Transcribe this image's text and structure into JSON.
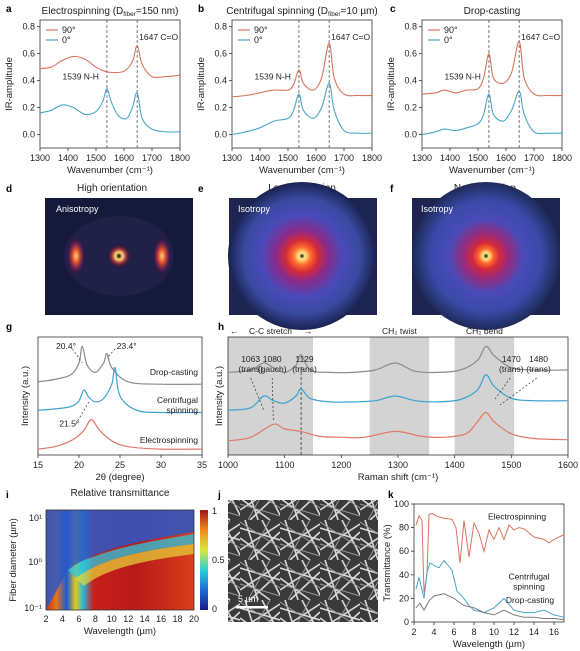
{
  "chart_data": [
    {
      "panel": "a",
      "type": "line",
      "title": "Electrospinning (D_fiber=150 nm)",
      "title_main": "Electrospinning (D",
      "title_sub": "fiber",
      "title_end": "=150 nm)",
      "xlabel": "Wavenumber (cm⁻¹)",
      "ylabel": "IR-amplitude",
      "xlim": [
        1300,
        1800
      ],
      "ylim": [
        -0.1,
        0.85
      ],
      "xticks": [
        "1300",
        "1400",
        "1500",
        "1600",
        "1700",
        "1800"
      ],
      "yticks": [
        "0.0",
        "0.2",
        "0.4",
        "0.6",
        "0.8"
      ],
      "legend": [
        "90°",
        "0°"
      ],
      "annotations": [
        "1539 N-H",
        "1647 C=O"
      ],
      "series": [
        {
          "name": "90°",
          "color": "#d9735f",
          "x": [
            1300,
            1340,
            1380,
            1420,
            1460,
            1500,
            1530,
            1560,
            1600,
            1630,
            1647,
            1665,
            1700,
            1750,
            1800
          ],
          "y": [
            0.49,
            0.5,
            0.55,
            0.58,
            0.56,
            0.5,
            0.47,
            0.46,
            0.47,
            0.54,
            0.66,
            0.52,
            0.43,
            0.43,
            0.44
          ]
        },
        {
          "name": "0°",
          "color": "#4aa6c8",
          "x": [
            1300,
            1340,
            1380,
            1420,
            1460,
            1500,
            1525,
            1539,
            1555,
            1580,
            1610,
            1630,
            1647,
            1665,
            1700,
            1750,
            1800
          ],
          "y": [
            0.16,
            0.18,
            0.22,
            0.2,
            0.15,
            0.17,
            0.25,
            0.34,
            0.24,
            0.14,
            0.12,
            0.2,
            0.31,
            0.12,
            0.04,
            0.02,
            0.02
          ]
        }
      ]
    },
    {
      "panel": "b",
      "type": "line",
      "title": "Centrifugal spinning (D_fiber=10 µm)",
      "title_main": "Centrifugal spinning (D",
      "title_sub": "fiber",
      "title_end": "=10 µm)",
      "xlabel": "Wavenumber (cm⁻¹)",
      "ylabel": "IR-amplitude",
      "xlim": [
        1300,
        1800
      ],
      "ylim": [
        -0.1,
        0.85
      ],
      "xticks": [
        "1300",
        "1400",
        "1500",
        "1600",
        "1700",
        "1800"
      ],
      "yticks": [
        "0.0",
        "0.2",
        "0.4",
        "0.6",
        "0.8"
      ],
      "legend": [
        "90°",
        "0°"
      ],
      "annotations": [
        "1539 N-H",
        "1647 C=O"
      ],
      "series": [
        {
          "name": "90°",
          "color": "#d9735f",
          "x": [
            1300,
            1350,
            1400,
            1450,
            1500,
            1520,
            1539,
            1555,
            1590,
            1620,
            1647,
            1665,
            1700,
            1750,
            1800
          ],
          "y": [
            0.28,
            0.29,
            0.31,
            0.33,
            0.33,
            0.37,
            0.48,
            0.38,
            0.33,
            0.42,
            0.68,
            0.42,
            0.3,
            0.29,
            0.29
          ]
        },
        {
          "name": "0°",
          "color": "#4aa6c8",
          "x": [
            1300,
            1350,
            1400,
            1450,
            1500,
            1520,
            1539,
            1555,
            1590,
            1620,
            1647,
            1665,
            1700,
            1750,
            1800
          ],
          "y": [
            0.0,
            0.02,
            0.05,
            0.1,
            0.12,
            0.18,
            0.3,
            0.18,
            0.12,
            0.2,
            0.38,
            0.18,
            0.03,
            0.01,
            0.01
          ]
        }
      ]
    },
    {
      "panel": "c",
      "type": "line",
      "title": "Drop-casting",
      "title_main": "Drop-casting",
      "title_sub": "",
      "title_end": "",
      "xlabel": "Wavenumber (cm⁻¹)",
      "ylabel": "IR-amplitude",
      "xlim": [
        1300,
        1800
      ],
      "ylim": [
        -0.1,
        0.85
      ],
      "xticks": [
        "1300",
        "1400",
        "1500",
        "1600",
        "1700",
        "1800"
      ],
      "yticks": [
        "0.0",
        "0.2",
        "0.4",
        "0.6",
        "0.8"
      ],
      "legend": [
        "90°",
        "0°"
      ],
      "annotations": [
        "1539 N-H",
        "1647 C=O"
      ],
      "series": [
        {
          "name": "90°",
          "color": "#d9735f",
          "x": [
            1300,
            1350,
            1380,
            1420,
            1460,
            1500,
            1520,
            1539,
            1555,
            1590,
            1620,
            1647,
            1665,
            1700,
            1750,
            1800
          ],
          "y": [
            0.3,
            0.31,
            0.33,
            0.31,
            0.33,
            0.34,
            0.42,
            0.6,
            0.42,
            0.38,
            0.46,
            0.69,
            0.42,
            0.3,
            0.29,
            0.29
          ]
        },
        {
          "name": "0°",
          "color": "#4aa6c8",
          "x": [
            1300,
            1350,
            1380,
            1420,
            1460,
            1500,
            1520,
            1539,
            1555,
            1590,
            1620,
            1647,
            1665,
            1700,
            1750,
            1800
          ],
          "y": [
            0.0,
            0.02,
            0.04,
            0.03,
            0.05,
            0.08,
            0.15,
            0.3,
            0.15,
            0.1,
            0.18,
            0.32,
            0.15,
            0.02,
            0.01,
            0.01
          ]
        }
      ]
    },
    {
      "panel": "g",
      "type": "line",
      "xlabel": "2θ (degree)",
      "ylabel": "Intensity (a.u.)",
      "xlim": [
        15,
        35
      ],
      "xticks": [
        "15",
        "20",
        "25",
        "30",
        "35"
      ],
      "annotations": [
        "20.4°",
        "23.4°",
        "21.5°"
      ],
      "series": [
        {
          "name": "Drop-casting",
          "color": "#8c8c8c",
          "x": [
            15,
            17,
            19,
            20,
            20.4,
            21,
            22,
            23,
            23.4,
            24,
            26,
            30,
            35
          ],
          "y": [
            0.62,
            0.64,
            0.68,
            0.78,
            0.92,
            0.76,
            0.7,
            0.78,
            0.86,
            0.74,
            0.62,
            0.6,
            0.6
          ]
        },
        {
          "name": "Centrifugal spinning",
          "color": "#3aa3cf",
          "x": [
            15,
            17,
            19,
            20,
            20.6,
            21.2,
            22,
            23,
            24,
            24.4,
            25,
            27,
            30,
            35
          ],
          "y": [
            0.38,
            0.39,
            0.41,
            0.46,
            0.55,
            0.49,
            0.45,
            0.48,
            0.6,
            0.74,
            0.5,
            0.38,
            0.36,
            0.36
          ]
        },
        {
          "name": "Electrospinning",
          "color": "#e07a6a",
          "x": [
            15,
            17,
            19,
            20.5,
            21.5,
            22.5,
            24,
            26,
            30,
            35
          ],
          "y": [
            0.05,
            0.07,
            0.12,
            0.2,
            0.3,
            0.21,
            0.12,
            0.07,
            0.05,
            0.05
          ]
        }
      ]
    },
    {
      "panel": "h",
      "type": "line",
      "xlabel": "Raman shift (cm⁻¹)",
      "ylabel": "Intensity (a.u.)",
      "xlim": [
        1000,
        1600
      ],
      "xticks": [
        "1000",
        "1100",
        "1200",
        "1300",
        "1400",
        "1500",
        "1600"
      ],
      "bands": [
        "C-C stretch",
        "CH₂ twist",
        "CH₂ bend"
      ],
      "annotations": [
        "1063 (trans)",
        "1080 (gauch)",
        "1129 (trans)",
        "1470 (trans)",
        "1480 (trans)"
      ],
      "series": [
        {
          "name": "Drop-casting",
          "color": "#8c8c8c",
          "x": [
            1000,
            1040,
            1063,
            1080,
            1100,
            1120,
            1129,
            1145,
            1180,
            1220,
            1260,
            1295,
            1330,
            1370,
            1410,
            1440,
            1455,
            1470,
            1500,
            1540,
            1600
          ],
          "y": [
            0.7,
            0.72,
            0.78,
            0.74,
            0.7,
            0.76,
            0.85,
            0.72,
            0.7,
            0.7,
            0.72,
            0.78,
            0.71,
            0.7,
            0.72,
            0.8,
            0.92,
            0.84,
            0.74,
            0.72,
            0.72
          ]
        },
        {
          "name": "Centrifugal spinning",
          "color": "#3aa3cf",
          "x": [
            1000,
            1040,
            1063,
            1080,
            1100,
            1120,
            1129,
            1145,
            1180,
            1220,
            1260,
            1295,
            1330,
            1370,
            1410,
            1440,
            1455,
            1470,
            1500,
            1540,
            1600
          ],
          "y": [
            0.38,
            0.4,
            0.5,
            0.46,
            0.44,
            0.5,
            0.56,
            0.48,
            0.45,
            0.45,
            0.46,
            0.5,
            0.46,
            0.45,
            0.47,
            0.55,
            0.68,
            0.58,
            0.48,
            0.46,
            0.46
          ]
        },
        {
          "name": "Electrospinning",
          "color": "#e07a6a",
          "x": [
            1000,
            1040,
            1080,
            1100,
            1129,
            1160,
            1200,
            1240,
            1295,
            1340,
            1380,
            1420,
            1440,
            1455,
            1470,
            1500,
            1540,
            1600
          ],
          "y": [
            0.12,
            0.15,
            0.26,
            0.22,
            0.2,
            0.16,
            0.15,
            0.15,
            0.2,
            0.16,
            0.15,
            0.18,
            0.28,
            0.36,
            0.28,
            0.18,
            0.14,
            0.13
          ]
        }
      ]
    },
    {
      "panel": "i",
      "type": "heatmap",
      "title": "Relative transmittance",
      "xlabel": "Wavelength (µm)",
      "ylabel": "Fiber diameter (µm)",
      "xticks": [
        "2",
        "4",
        "6",
        "8",
        "10",
        "12",
        "14",
        "16",
        "18",
        "20"
      ],
      "yticks": [
        "10⁻¹",
        "10⁰",
        "10¹"
      ],
      "colorbar_ticks": [
        "1",
        "0.5",
        "0"
      ]
    },
    {
      "panel": "k",
      "type": "line",
      "xlabel": "Wavelength (µm)",
      "ylabel": "Transmittance (%)",
      "xlim": [
        2,
        17
      ],
      "ylim": [
        0,
        100
      ],
      "xticks": [
        "2",
        "4",
        "6",
        "8",
        "10",
        "12",
        "14",
        "16"
      ],
      "yticks": [
        "0",
        "20",
        "40",
        "60",
        "80",
        "100"
      ],
      "series": [
        {
          "name": "Electrospinning",
          "color": "#d9735f",
          "x": [
            2.2,
            2.5,
            2.8,
            3.0,
            3.3,
            3.5,
            3.8,
            4.2,
            5,
            5.8,
            6.2,
            6.6,
            7,
            7.5,
            8,
            8.5,
            9,
            9.5,
            10,
            10.5,
            11,
            11.5,
            12,
            12.5,
            13,
            14,
            15,
            15.5,
            16,
            17
          ],
          "y": [
            82,
            90,
            86,
            25,
            40,
            91,
            92,
            90,
            88,
            87,
            80,
            50,
            86,
            55,
            84,
            75,
            60,
            78,
            70,
            80,
            70,
            82,
            78,
            80,
            79,
            72,
            70,
            67,
            70,
            74
          ]
        },
        {
          "name": "Centrifugal spinning",
          "color": "#4aa6c8",
          "x": [
            2.2,
            2.5,
            3.0,
            3.3,
            3.6,
            4,
            4.5,
            5,
            5.8,
            6.3,
            6.8,
            7.5,
            8,
            9,
            10,
            11,
            12,
            13,
            14,
            15,
            16,
            17
          ],
          "y": [
            28,
            38,
            20,
            42,
            50,
            48,
            46,
            52,
            44,
            26,
            22,
            14,
            10,
            8,
            12,
            20,
            10,
            8,
            8,
            10,
            6,
            4
          ]
        },
        {
          "name": "Drop-casting",
          "color": "#7a7a7a",
          "x": [
            2.2,
            2.6,
            3,
            3.5,
            4,
            5,
            6,
            7,
            8,
            9,
            10,
            11,
            12,
            13,
            14,
            15,
            16,
            17
          ],
          "y": [
            12,
            16,
            10,
            18,
            22,
            24,
            20,
            14,
            12,
            8,
            6,
            10,
            6,
            4,
            4,
            3,
            3,
            2
          ]
        }
      ]
    }
  ],
  "panels": {
    "a": "a",
    "b": "b",
    "c": "c",
    "d": "d",
    "e": "e",
    "f": "f",
    "g": "g",
    "h": "h",
    "i": "i",
    "j": "j",
    "k": "k"
  },
  "images": {
    "d": {
      "title": "High orientation",
      "label": "Anisotropy"
    },
    "e": {
      "title": "Low orientation",
      "label": "Isotropy"
    },
    "f": {
      "title": "No orientation",
      "label": "Isotropy"
    }
  },
  "sem": {
    "scale": "5 µm"
  },
  "colors": {
    "red": "#d9735f",
    "blue": "#4aa6c8",
    "gray": "#8c8c8c",
    "band": "#d3d3d3"
  }
}
